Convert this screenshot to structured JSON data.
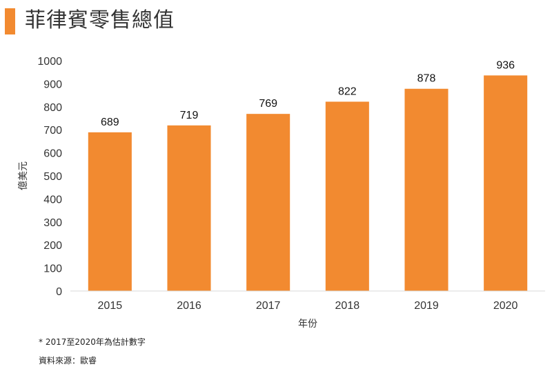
{
  "header": {
    "title": "菲律賓零售總值"
  },
  "colors": {
    "accent": "#f28a30",
    "bar": "#f28a30"
  },
  "chart_data": {
    "type": "bar",
    "categories": [
      "2015",
      "2016",
      "2017",
      "2018",
      "2019",
      "2020"
    ],
    "values": [
      689,
      719,
      769,
      822,
      878,
      936
    ],
    "title": "",
    "xlabel": "年份",
    "ylabel": "億美元",
    "ylim": [
      0,
      1000
    ],
    "yticks": [
      0,
      100,
      200,
      300,
      400,
      500,
      600,
      700,
      800,
      900,
      1000
    ],
    "data_labels": true,
    "grid": false,
    "legend": "none"
  },
  "footnotes": {
    "estimate": "*  2017至2020年為估計數字",
    "source": "資料來源：歐睿"
  }
}
